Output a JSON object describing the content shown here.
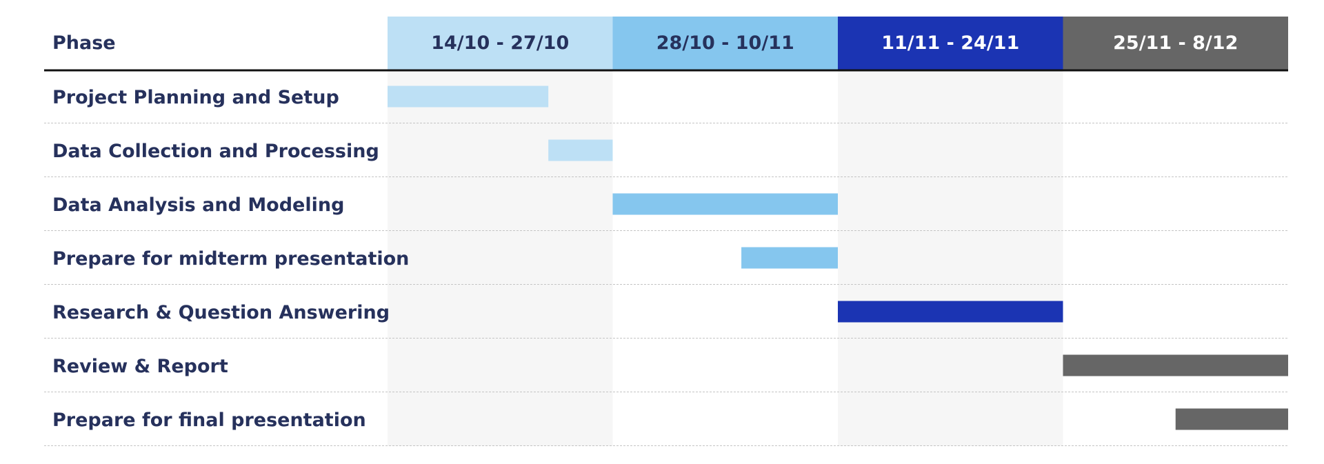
{
  "chart_data": {
    "type": "gantt",
    "header_label": "Phase",
    "periods": [
      {
        "label": "14/10 - 27/10",
        "start": "2024-10-14",
        "end": "2024-10-28",
        "color": "#bde0f5",
        "text_color": "#26315c"
      },
      {
        "label": "28/10 - 10/11",
        "start": "2024-10-28",
        "end": "2024-11-11",
        "color": "#85c6ee",
        "text_color": "#26315c"
      },
      {
        "label": "11/11 - 24/11",
        "start": "2024-11-11",
        "end": "2024-11-25",
        "color": "#1b34b3",
        "text_color": "#ffffff"
      },
      {
        "label": "25/11 - 8/12",
        "start": "2024-11-25",
        "end": "2024-12-09",
        "color": "#666666",
        "text_color": "#ffffff"
      }
    ],
    "tasks": [
      {
        "name": "Project Planning and Setup",
        "start": "2024-10-14",
        "end": "2024-10-24",
        "color": "#bde0f5"
      },
      {
        "name": "Data Collection and Processing",
        "start": "2024-10-24",
        "end": "2024-10-28",
        "color": "#bde0f5"
      },
      {
        "name": "Data Analysis and Modeling",
        "start": "2024-10-28",
        "end": "2024-11-11",
        "color": "#85c6ee"
      },
      {
        "name": "Prepare for midterm presentation",
        "start": "2024-11-05",
        "end": "2024-11-11",
        "color": "#85c6ee"
      },
      {
        "name": "Research & Question Answering",
        "start": "2024-11-11",
        "end": "2024-11-25",
        "color": "#1b34b3"
      },
      {
        "name": "Review & Report",
        "start": "2024-11-25",
        "end": "2024-12-09",
        "color": "#666666"
      },
      {
        "name": "Prepare for final presentation",
        "start": "2024-12-02",
        "end": "2024-12-09",
        "color": "#666666"
      }
    ]
  }
}
